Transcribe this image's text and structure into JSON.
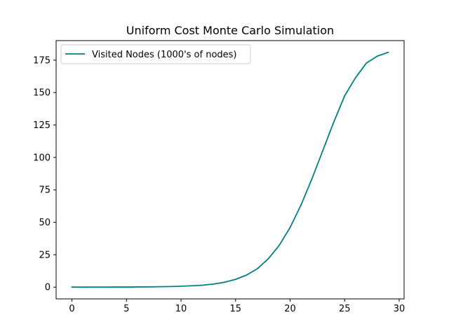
{
  "chart_data": {
    "type": "line",
    "title": "Uniform Cost Monte Carlo Simulation",
    "xlabel": "",
    "ylabel": "",
    "xlim": [
      -1.45,
      30.45
    ],
    "ylim": [
      -9.05,
      190.05
    ],
    "xticks": [
      0,
      5,
      10,
      15,
      20,
      25,
      30
    ],
    "yticks": [
      0,
      25,
      50,
      75,
      100,
      125,
      150,
      175
    ],
    "grid": false,
    "legend_position": "top-left",
    "series": [
      {
        "name": "Visited Nodes (1000's of nodes)",
        "color": "#008080",
        "x": [
          0,
          1,
          2,
          3,
          4,
          5,
          6,
          7,
          8,
          9,
          10,
          11,
          12,
          13,
          14,
          15,
          16,
          17,
          18,
          19,
          20,
          21,
          22,
          23,
          24,
          25,
          26,
          27,
          28,
          29
        ],
        "y": [
          0.02,
          0.03,
          0.04,
          0.06,
          0.08,
          0.1,
          0.15,
          0.22,
          0.32,
          0.48,
          0.72,
          1.05,
          1.55,
          2.4,
          3.8,
          6.0,
          9.3,
          14.2,
          21.9,
          32.2,
          46.0,
          63.3,
          83.5,
          105.3,
          127.2,
          147.5,
          161.5,
          172.8,
          178.1,
          181.0
        ]
      }
    ]
  }
}
